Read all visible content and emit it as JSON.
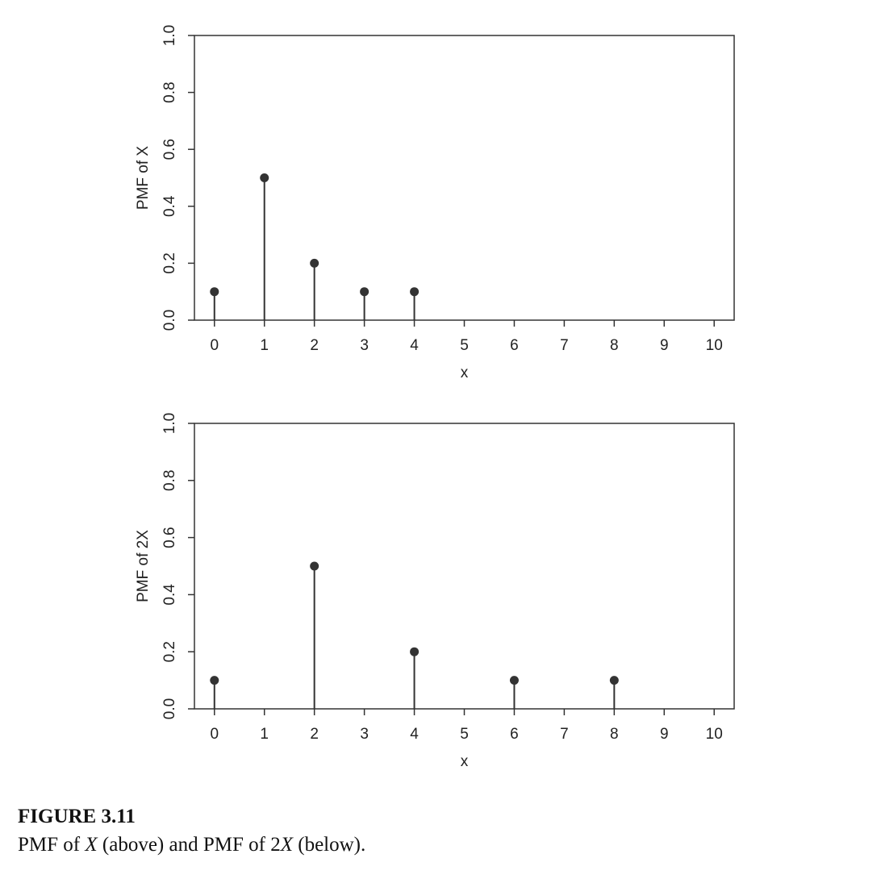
{
  "chart_data": [
    {
      "type": "stem",
      "ylabel": "PMF of X",
      "xlabel": "x",
      "x": [
        0,
        1,
        2,
        3,
        4
      ],
      "values": [
        0.1,
        0.5,
        0.2,
        0.1,
        0.1
      ],
      "color": "#333333",
      "xlim": [
        -0.4,
        10.4
      ],
      "xticks": [
        0,
        1,
        2,
        3,
        4,
        5,
        6,
        7,
        8,
        9,
        10
      ],
      "ylim": [
        0,
        1
      ],
      "yticks": [
        {
          "value": 0,
          "label": "0.0"
        },
        0.2,
        0.4,
        0.6,
        0.8,
        {
          "value": 1,
          "label": "1.0"
        }
      ]
    },
    {
      "type": "stem",
      "ylabel": "PMF of 2X",
      "xlabel": "x",
      "x": [
        0,
        2,
        4,
        6,
        8
      ],
      "values": [
        0.1,
        0.5,
        0.2,
        0.1,
        0.1
      ],
      "color": "#333333",
      "xlim": [
        -0.4,
        10.4
      ],
      "xticks": [
        0,
        1,
        2,
        3,
        4,
        5,
        6,
        7,
        8,
        9,
        10
      ],
      "ylim": [
        0,
        1
      ],
      "yticks": [
        {
          "value": 0,
          "label": "0.0"
        },
        0.2,
        0.4,
        0.6,
        0.8,
        {
          "value": 1,
          "label": "1.0"
        }
      ]
    }
  ],
  "caption": {
    "label": "FIGURE 3.11",
    "parts": [
      {
        "text": "PMF of "
      },
      {
        "text": "X",
        "italic": true
      },
      {
        "text": " (above) and PMF of 2"
      },
      {
        "text": "X",
        "italic": true
      },
      {
        "text": " (below)."
      }
    ]
  }
}
